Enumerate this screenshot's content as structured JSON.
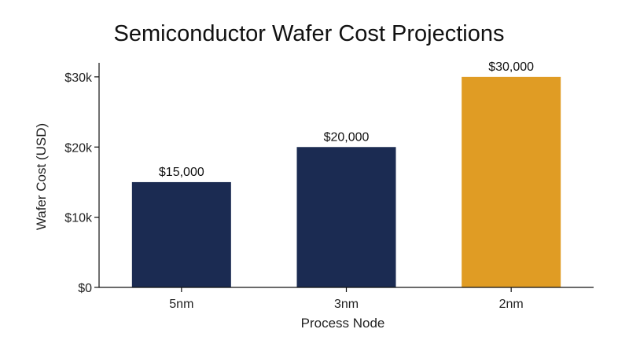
{
  "chart_data": {
    "type": "bar",
    "title": "Semiconductor Wafer Cost Projections",
    "xlabel": "Process Node",
    "ylabel": "Wafer Cost (USD)",
    "categories": [
      "5nm",
      "3nm",
      "2nm"
    ],
    "values": [
      15000,
      20000,
      30000
    ],
    "value_labels": [
      "$15,000",
      "$20,000",
      "$30,000"
    ],
    "bar_colors": [
      "#1b2b52",
      "#1b2b52",
      "#e09c24"
    ],
    "ylim": [
      0,
      32000
    ],
    "y_ticks": [
      0,
      10000,
      20000,
      30000
    ],
    "y_tick_labels": [
      "$0",
      "$10k",
      "$20k",
      "$30k"
    ],
    "grid": false,
    "legend": "none"
  }
}
